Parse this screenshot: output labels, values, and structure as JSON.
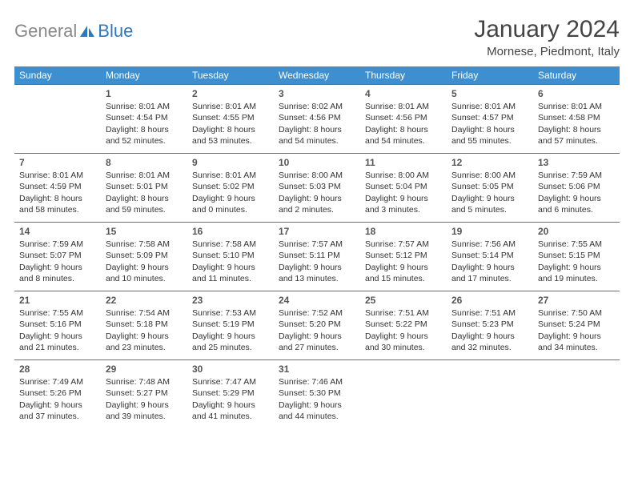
{
  "logo": {
    "gray": "General",
    "blue": "Blue"
  },
  "title": "January 2024",
  "location": "Mornese, Piedmont, Italy",
  "colors": {
    "header_bg": "#3d8fcf",
    "header_fg": "#ffffff",
    "border": "#3d78a8",
    "logo_gray": "#888888",
    "logo_blue": "#2b7ac0",
    "text": "#333333"
  },
  "day_headers": [
    "Sunday",
    "Monday",
    "Tuesday",
    "Wednesday",
    "Thursday",
    "Friday",
    "Saturday"
  ],
  "weeks": [
    [
      null,
      {
        "n": "1",
        "sr": "Sunrise: 8:01 AM",
        "ss": "Sunset: 4:54 PM",
        "d1": "Daylight: 8 hours",
        "d2": "and 52 minutes."
      },
      {
        "n": "2",
        "sr": "Sunrise: 8:01 AM",
        "ss": "Sunset: 4:55 PM",
        "d1": "Daylight: 8 hours",
        "d2": "and 53 minutes."
      },
      {
        "n": "3",
        "sr": "Sunrise: 8:02 AM",
        "ss": "Sunset: 4:56 PM",
        "d1": "Daylight: 8 hours",
        "d2": "and 54 minutes."
      },
      {
        "n": "4",
        "sr": "Sunrise: 8:01 AM",
        "ss": "Sunset: 4:56 PM",
        "d1": "Daylight: 8 hours",
        "d2": "and 54 minutes."
      },
      {
        "n": "5",
        "sr": "Sunrise: 8:01 AM",
        "ss": "Sunset: 4:57 PM",
        "d1": "Daylight: 8 hours",
        "d2": "and 55 minutes."
      },
      {
        "n": "6",
        "sr": "Sunrise: 8:01 AM",
        "ss": "Sunset: 4:58 PM",
        "d1": "Daylight: 8 hours",
        "d2": "and 57 minutes."
      }
    ],
    [
      {
        "n": "7",
        "sr": "Sunrise: 8:01 AM",
        "ss": "Sunset: 4:59 PM",
        "d1": "Daylight: 8 hours",
        "d2": "and 58 minutes."
      },
      {
        "n": "8",
        "sr": "Sunrise: 8:01 AM",
        "ss": "Sunset: 5:01 PM",
        "d1": "Daylight: 8 hours",
        "d2": "and 59 minutes."
      },
      {
        "n": "9",
        "sr": "Sunrise: 8:01 AM",
        "ss": "Sunset: 5:02 PM",
        "d1": "Daylight: 9 hours",
        "d2": "and 0 minutes."
      },
      {
        "n": "10",
        "sr": "Sunrise: 8:00 AM",
        "ss": "Sunset: 5:03 PM",
        "d1": "Daylight: 9 hours",
        "d2": "and 2 minutes."
      },
      {
        "n": "11",
        "sr": "Sunrise: 8:00 AM",
        "ss": "Sunset: 5:04 PM",
        "d1": "Daylight: 9 hours",
        "d2": "and 3 minutes."
      },
      {
        "n": "12",
        "sr": "Sunrise: 8:00 AM",
        "ss": "Sunset: 5:05 PM",
        "d1": "Daylight: 9 hours",
        "d2": "and 5 minutes."
      },
      {
        "n": "13",
        "sr": "Sunrise: 7:59 AM",
        "ss": "Sunset: 5:06 PM",
        "d1": "Daylight: 9 hours",
        "d2": "and 6 minutes."
      }
    ],
    [
      {
        "n": "14",
        "sr": "Sunrise: 7:59 AM",
        "ss": "Sunset: 5:07 PM",
        "d1": "Daylight: 9 hours",
        "d2": "and 8 minutes."
      },
      {
        "n": "15",
        "sr": "Sunrise: 7:58 AM",
        "ss": "Sunset: 5:09 PM",
        "d1": "Daylight: 9 hours",
        "d2": "and 10 minutes."
      },
      {
        "n": "16",
        "sr": "Sunrise: 7:58 AM",
        "ss": "Sunset: 5:10 PM",
        "d1": "Daylight: 9 hours",
        "d2": "and 11 minutes."
      },
      {
        "n": "17",
        "sr": "Sunrise: 7:57 AM",
        "ss": "Sunset: 5:11 PM",
        "d1": "Daylight: 9 hours",
        "d2": "and 13 minutes."
      },
      {
        "n": "18",
        "sr": "Sunrise: 7:57 AM",
        "ss": "Sunset: 5:12 PM",
        "d1": "Daylight: 9 hours",
        "d2": "and 15 minutes."
      },
      {
        "n": "19",
        "sr": "Sunrise: 7:56 AM",
        "ss": "Sunset: 5:14 PM",
        "d1": "Daylight: 9 hours",
        "d2": "and 17 minutes."
      },
      {
        "n": "20",
        "sr": "Sunrise: 7:55 AM",
        "ss": "Sunset: 5:15 PM",
        "d1": "Daylight: 9 hours",
        "d2": "and 19 minutes."
      }
    ],
    [
      {
        "n": "21",
        "sr": "Sunrise: 7:55 AM",
        "ss": "Sunset: 5:16 PM",
        "d1": "Daylight: 9 hours",
        "d2": "and 21 minutes."
      },
      {
        "n": "22",
        "sr": "Sunrise: 7:54 AM",
        "ss": "Sunset: 5:18 PM",
        "d1": "Daylight: 9 hours",
        "d2": "and 23 minutes."
      },
      {
        "n": "23",
        "sr": "Sunrise: 7:53 AM",
        "ss": "Sunset: 5:19 PM",
        "d1": "Daylight: 9 hours",
        "d2": "and 25 minutes."
      },
      {
        "n": "24",
        "sr": "Sunrise: 7:52 AM",
        "ss": "Sunset: 5:20 PM",
        "d1": "Daylight: 9 hours",
        "d2": "and 27 minutes."
      },
      {
        "n": "25",
        "sr": "Sunrise: 7:51 AM",
        "ss": "Sunset: 5:22 PM",
        "d1": "Daylight: 9 hours",
        "d2": "and 30 minutes."
      },
      {
        "n": "26",
        "sr": "Sunrise: 7:51 AM",
        "ss": "Sunset: 5:23 PM",
        "d1": "Daylight: 9 hours",
        "d2": "and 32 minutes."
      },
      {
        "n": "27",
        "sr": "Sunrise: 7:50 AM",
        "ss": "Sunset: 5:24 PM",
        "d1": "Daylight: 9 hours",
        "d2": "and 34 minutes."
      }
    ],
    [
      {
        "n": "28",
        "sr": "Sunrise: 7:49 AM",
        "ss": "Sunset: 5:26 PM",
        "d1": "Daylight: 9 hours",
        "d2": "and 37 minutes."
      },
      {
        "n": "29",
        "sr": "Sunrise: 7:48 AM",
        "ss": "Sunset: 5:27 PM",
        "d1": "Daylight: 9 hours",
        "d2": "and 39 minutes."
      },
      {
        "n": "30",
        "sr": "Sunrise: 7:47 AM",
        "ss": "Sunset: 5:29 PM",
        "d1": "Daylight: 9 hours",
        "d2": "and 41 minutes."
      },
      {
        "n": "31",
        "sr": "Sunrise: 7:46 AM",
        "ss": "Sunset: 5:30 PM",
        "d1": "Daylight: 9 hours",
        "d2": "and 44 minutes."
      },
      null,
      null,
      null
    ]
  ]
}
